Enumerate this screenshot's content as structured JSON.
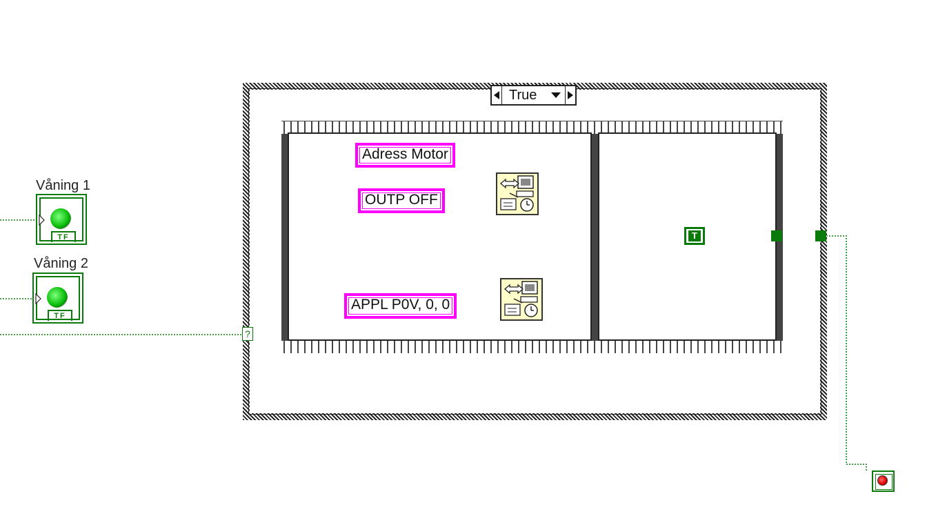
{
  "indicators": [
    {
      "label": "Våning 1",
      "terminal_text": "TF"
    },
    {
      "label": "Våning 2",
      "terminal_text": "TF"
    }
  ],
  "case_structure": {
    "selector_value": "True",
    "selector_terminal": "?"
  },
  "sequence": {
    "frame1": {
      "constants": [
        "Adress Motor",
        "OUTP OFF",
        "APPL P0V, 0, 0"
      ]
    },
    "frame2": {
      "boolean_constant": "T"
    }
  },
  "colors": {
    "string_wire": "#ff00ff",
    "boolean_wire": "#0a7a0a",
    "led_on": "#1bd41b",
    "stop_button": "#e00000"
  }
}
